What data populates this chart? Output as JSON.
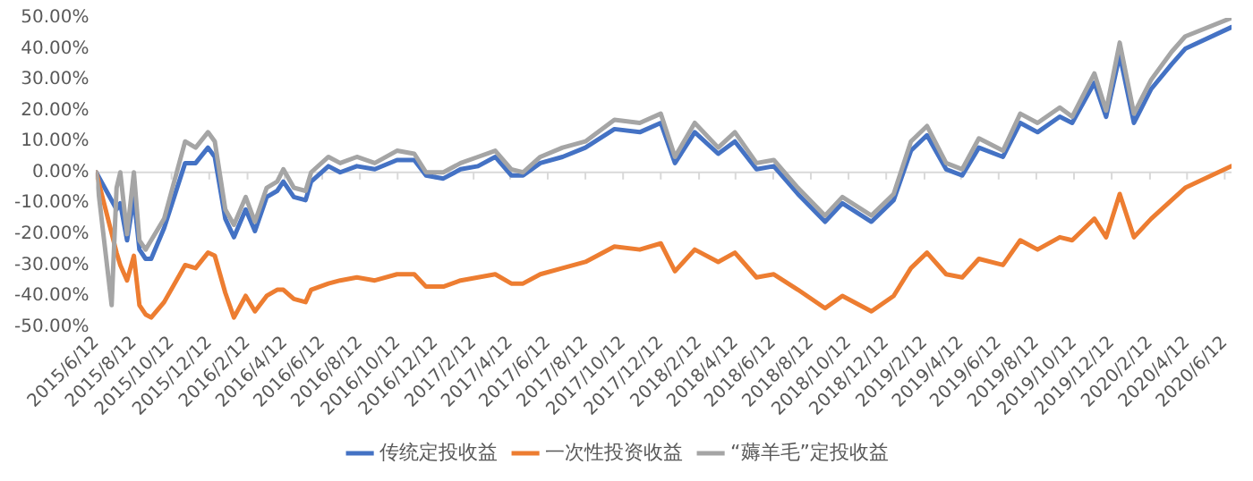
{
  "chart_data": {
    "type": "line",
    "x": [
      "2015-06-12",
      "2015-07-07",
      "2015-07-15",
      "2015-07-21",
      "2015-08-01",
      "2015-08-12",
      "2015-08-21",
      "2015-08-31",
      "2015-09-09",
      "2015-09-30",
      "2015-11-03",
      "2015-11-20",
      "2015-12-10",
      "2015-12-21",
      "2016-01-07",
      "2016-01-21",
      "2016-02-09",
      "2016-02-24",
      "2016-03-14",
      "2016-03-31",
      "2016-04-10",
      "2016-04-27",
      "2016-05-16",
      "2016-05-25",
      "2016-06-22",
      "2016-07-11",
      "2016-08-07",
      "2016-09-05",
      "2016-10-11",
      "2016-11-08",
      "2016-11-27",
      "2016-12-25",
      "2017-01-22",
      "2017-02-19",
      "2017-03-19",
      "2017-04-14",
      "2017-05-03",
      "2017-05-31",
      "2017-07-06",
      "2017-08-12",
      "2017-09-28",
      "2017-11-08",
      "2017-12-12",
      "2018-01-04",
      "2018-02-05",
      "2018-03-15",
      "2018-04-11",
      "2018-05-16",
      "2018-06-13",
      "2018-07-22",
      "2018-09-04",
      "2018-10-02",
      "2018-11-18",
      "2018-12-24",
      "2019-01-21",
      "2019-02-16",
      "2019-03-19",
      "2019-04-14",
      "2019-05-11",
      "2019-06-19",
      "2019-07-17",
      "2019-08-14",
      "2019-09-19",
      "2019-10-09",
      "2019-11-14",
      "2019-12-03",
      "2019-12-25",
      "2020-01-17",
      "2020-02-14",
      "2020-03-18",
      "2020-04-09",
      "2020-06-23"
    ],
    "series": [
      {
        "name": "传统定投收益",
        "color": "#4472c4",
        "values": [
          0,
          null,
          -12,
          -10,
          -22,
          -8,
          -25,
          -28,
          -28,
          -18,
          3,
          3,
          8,
          5,
          -15,
          -21,
          -12,
          -19,
          -8,
          -6,
          -3,
          -8,
          -9,
          -3,
          2,
          0,
          2,
          1,
          4,
          4,
          -1,
          -2,
          1,
          2,
          5,
          -1,
          -1,
          3,
          5,
          8,
          14,
          13,
          16,
          3,
          13,
          6,
          10,
          1,
          2,
          -7,
          -16,
          -10,
          -16,
          -9,
          7,
          12,
          1,
          -1,
          8,
          5,
          16,
          13,
          18,
          16,
          29,
          18,
          38,
          16,
          27,
          35,
          40,
          47
        ]
      },
      {
        "name": "一次性投资收益",
        "color": "#ed7d31",
        "values": [
          0,
          null,
          -26,
          -30,
          -35,
          -27,
          -43,
          -46,
          -47,
          -42,
          -30,
          -31,
          -26,
          -27,
          -39,
          -47,
          -40,
          -45,
          -40,
          -38,
          -38,
          -41,
          -42,
          -38,
          -36,
          -35,
          -34,
          -35,
          -33,
          -33,
          -37,
          -37,
          -35,
          -34,
          -33,
          -36,
          -36,
          -33,
          -31,
          -29,
          -24,
          -25,
          -23,
          -32,
          -25,
          -29,
          -26,
          -34,
          -33,
          -38,
          -44,
          -40,
          -45,
          -40,
          -31,
          -26,
          -33,
          -34,
          -28,
          -30,
          -22,
          -25,
          -21,
          -22,
          -15,
          -21,
          -7,
          -21,
          -15,
          -9,
          -5,
          2
        ]
      },
      {
        "name": "“薅羊毛”定投收益",
        "color": "#a5a5a5",
        "values": [
          0,
          -43,
          -5,
          0,
          -20,
          0,
          -22,
          -25,
          -22,
          -15,
          10,
          8,
          13,
          10,
          -12,
          -17,
          -8,
          -16,
          -5,
          -3,
          1,
          -5,
          -6,
          0,
          5,
          3,
          5,
          3,
          7,
          6,
          0,
          0,
          3,
          5,
          7,
          1,
          0,
          5,
          8,
          10,
          17,
          16,
          19,
          5,
          16,
          8,
          13,
          3,
          4,
          -5,
          -14,
          -8,
          -14,
          -7,
          10,
          15,
          3,
          1,
          11,
          7,
          19,
          16,
          21,
          18,
          32,
          20,
          42,
          19,
          30,
          39,
          44,
          50
        ]
      }
    ],
    "xlim": [
      "2015-06-12",
      "2020-06-23"
    ],
    "xticks": [
      {
        "value": "2015-06-12",
        "label": "2015/6/12"
      },
      {
        "value": "2015-08-12",
        "label": "2015/8/12"
      },
      {
        "value": "2015-10-12",
        "label": "2015/10/12"
      },
      {
        "value": "2015-12-12",
        "label": "2015/12/12"
      },
      {
        "value": "2016-02-12",
        "label": "2016/2/12"
      },
      {
        "value": "2016-04-12",
        "label": "2016/4/12"
      },
      {
        "value": "2016-06-12",
        "label": "2016/6/12"
      },
      {
        "value": "2016-08-12",
        "label": "2016/8/12"
      },
      {
        "value": "2016-10-12",
        "label": "2016/10/12"
      },
      {
        "value": "2016-12-12",
        "label": "2016/12/12"
      },
      {
        "value": "2017-02-12",
        "label": "2017/2/12"
      },
      {
        "value": "2017-04-12",
        "label": "2017/4/12"
      },
      {
        "value": "2017-06-12",
        "label": "2017/6/12"
      },
      {
        "value": "2017-08-12",
        "label": "2017/8/12"
      },
      {
        "value": "2017-10-12",
        "label": "2017/10/12"
      },
      {
        "value": "2017-12-12",
        "label": "2017/12/12"
      },
      {
        "value": "2018-02-12",
        "label": "2018/2/12"
      },
      {
        "value": "2018-04-12",
        "label": "2018/4/12"
      },
      {
        "value": "2018-06-12",
        "label": "2018/6/12"
      },
      {
        "value": "2018-08-12",
        "label": "2018/8/12"
      },
      {
        "value": "2018-10-12",
        "label": "2018/10/12"
      },
      {
        "value": "2018-12-12",
        "label": "2018/12/12"
      },
      {
        "value": "2019-02-12",
        "label": "2019/2/12"
      },
      {
        "value": "2019-04-12",
        "label": "2019/4/12"
      },
      {
        "value": "2019-06-12",
        "label": "2019/6/12"
      },
      {
        "value": "2019-08-12",
        "label": "2019/8/12"
      },
      {
        "value": "2019-10-12",
        "label": "2019/10/12"
      },
      {
        "value": "2019-12-12",
        "label": "2019/12/12"
      },
      {
        "value": "2020-02-12",
        "label": "2020/2/12"
      },
      {
        "value": "2020-04-12",
        "label": "2020/4/12"
      },
      {
        "value": "2020-06-12",
        "label": "2020/6/12"
      }
    ],
    "ylim": [
      -50,
      50
    ],
    "yticks": [
      {
        "value": -50,
        "label": "-50.00%"
      },
      {
        "value": -40,
        "label": "-40.00%"
      },
      {
        "value": -30,
        "label": "-30.00%"
      },
      {
        "value": -20,
        "label": "-20.00%"
      },
      {
        "value": -10,
        "label": "-10.00%"
      },
      {
        "value": 0,
        "label": "0.00%"
      },
      {
        "value": 10,
        "label": "10.00%"
      },
      {
        "value": 20,
        "label": "20.00%"
      },
      {
        "value": 30,
        "label": "30.00%"
      },
      {
        "value": 40,
        "label": "40.00%"
      },
      {
        "value": 50,
        "label": "50.00%"
      }
    ],
    "ref_lines": [
      {
        "axis": "y",
        "value": 0,
        "color": "#d9d9d9"
      }
    ],
    "grid": false,
    "legend": "bottom",
    "marker": "none",
    "line_style": "solid"
  }
}
